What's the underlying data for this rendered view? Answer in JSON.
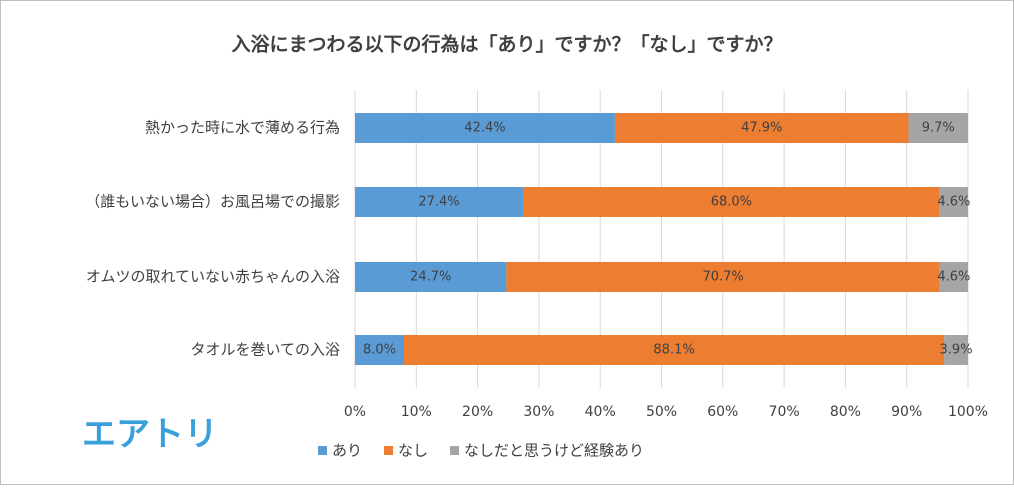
{
  "chart_data": {
    "type": "stacked-bar-horizontal",
    "title": "入浴にまつわる以下の行為は「あり」ですか？「なし」ですか？",
    "categories": [
      "熱かった時に水で薄める行為",
      "（誰もいない場合）お風呂場での撮影",
      "オムツの取れていない赤ちゃんの入浴",
      "タオルを巻いての入浴"
    ],
    "series": [
      {
        "name": "あり",
        "color": "#5b9bd5",
        "values": [
          42.4,
          27.4,
          24.7,
          8.0
        ],
        "value_labels": [
          "42.4%",
          "27.4%",
          "24.7%",
          "8.0%"
        ]
      },
      {
        "name": "なし",
        "color": "#ed7d31",
        "values": [
          47.9,
          68.0,
          70.7,
          88.1
        ],
        "value_labels": [
          "47.9%",
          "68.0%",
          "70.7%",
          "88.1%"
        ]
      },
      {
        "name": "なしだと思うけど経験あり",
        "color": "#a5a5a5",
        "values": [
          9.7,
          4.6,
          4.6,
          3.9
        ],
        "value_labels": [
          "9.7%",
          "4.6%",
          "4.6%",
          "3.9%"
        ]
      }
    ],
    "xlim": [
      0,
      100
    ],
    "xticks": [
      {
        "value": 0,
        "label": "0%"
      },
      {
        "value": 10,
        "label": "10%"
      },
      {
        "value": 20,
        "label": "20%"
      },
      {
        "value": 30,
        "label": "30%"
      },
      {
        "value": 40,
        "label": "40%"
      },
      {
        "value": 50,
        "label": "50%"
      },
      {
        "value": 60,
        "label": "60%"
      },
      {
        "value": 70,
        "label": "70%"
      },
      {
        "value": 80,
        "label": "80%"
      },
      {
        "value": 90,
        "label": "90%"
      },
      {
        "value": 100,
        "label": "100%"
      }
    ],
    "grid": true,
    "legend": "bottom"
  },
  "logo": "エアトリ"
}
